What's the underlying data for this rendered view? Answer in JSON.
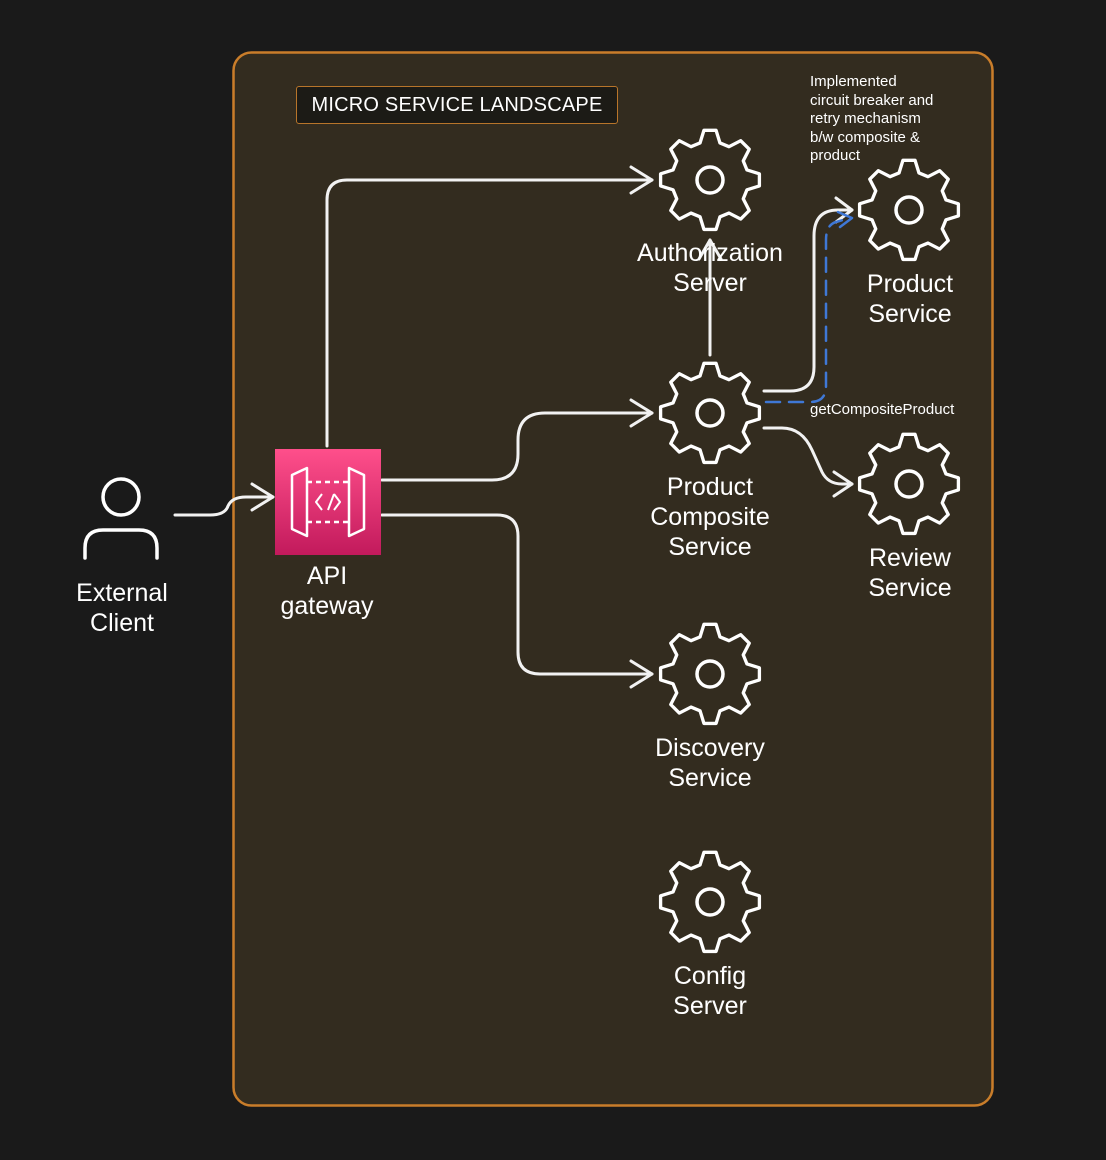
{
  "title": "MICRO SERVICE LANDSCAPE",
  "colors": {
    "background": "#1a1a1a",
    "frame_fill": "#332c1f",
    "frame_border": "#c97d2a",
    "arrow": "#f2f2f2",
    "dashed_arrow": "#3f78d6",
    "gateway_gradient_top": "#ff4f8b",
    "gateway_gradient_bottom": "#c21a5c"
  },
  "nodes": {
    "external_client": {
      "icon": "user-icon",
      "line1": "External",
      "line2": "Client"
    },
    "api_gateway": {
      "icon": "api-gateway-icon",
      "line1": "API",
      "line2": "gateway"
    },
    "authorization_server": {
      "icon": "gear-icon",
      "line1": "Authorization",
      "line2": "Server"
    },
    "product_composite": {
      "icon": "gear-icon",
      "line1": "Product",
      "line2": "Composite",
      "line3": "Service"
    },
    "product_service": {
      "icon": "gear-icon",
      "line1": "Product",
      "line2": "Service"
    },
    "review_service": {
      "icon": "gear-icon",
      "line1": "Review",
      "line2": "Service"
    },
    "discovery_service": {
      "icon": "gear-icon",
      "line1": "Discovery",
      "line2": "Service"
    },
    "config_server": {
      "icon": "gear-icon",
      "line1": "Config",
      "line2": "Server"
    }
  },
  "annotations": {
    "circuit_breaker": {
      "line1": "Implemented",
      "line2": "circuit breaker and",
      "line3": "retry mechanism",
      "line4": "b/w composite &",
      "line5": "product"
    },
    "get_composite": "getCompositeProduct"
  }
}
